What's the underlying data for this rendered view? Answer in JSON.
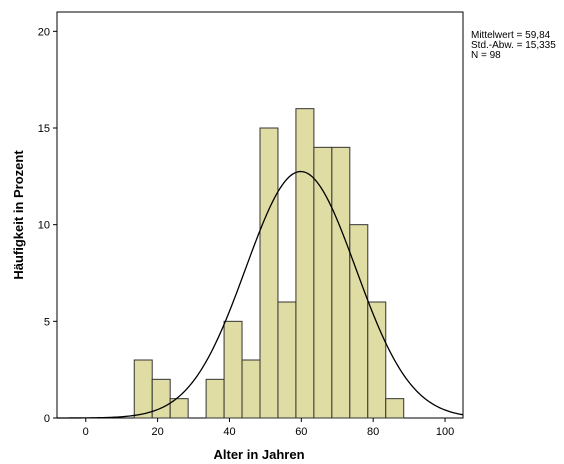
{
  "chart_data": {
    "type": "bar",
    "subtype": "histogram with normal curve",
    "xlabel": "Alter in Jahren",
    "ylabel": "Häufigkeit in Prozent",
    "xlim": [
      -8,
      105
    ],
    "ylim": [
      0,
      21
    ],
    "x_ticks": [
      0,
      20,
      40,
      60,
      80,
      100
    ],
    "y_ticks": [
      0,
      5,
      10,
      15,
      20
    ],
    "bin_width": 5,
    "bins": [
      {
        "start": 13.5,
        "value": 3
      },
      {
        "start": 18.5,
        "value": 2
      },
      {
        "start": 23.5,
        "value": 1
      },
      {
        "start": 33.5,
        "value": 2
      },
      {
        "start": 38.5,
        "value": 5
      },
      {
        "start": 43.5,
        "value": 3
      },
      {
        "start": 48.5,
        "value": 15
      },
      {
        "start": 53.5,
        "value": 6
      },
      {
        "start": 58.5,
        "value": 16
      },
      {
        "start": 63.5,
        "value": 14
      },
      {
        "start": 68.5,
        "value": 14
      },
      {
        "start": 73.5,
        "value": 10
      },
      {
        "start": 78.5,
        "value": 6
      },
      {
        "start": 83.5,
        "value": 1
      }
    ],
    "normal_curve": {
      "mean": 59.84,
      "sd": 15.335,
      "peak": 12.75
    },
    "stats": [
      "Mittelwert = 59,84",
      "Std.-Abw. = 15,335",
      "N = 98"
    ],
    "grid": false,
    "colors": {
      "bar_fill": "#e0dda4",
      "bar_stroke": "#333333",
      "curve": "#000000",
      "axis": "#000000"
    }
  }
}
